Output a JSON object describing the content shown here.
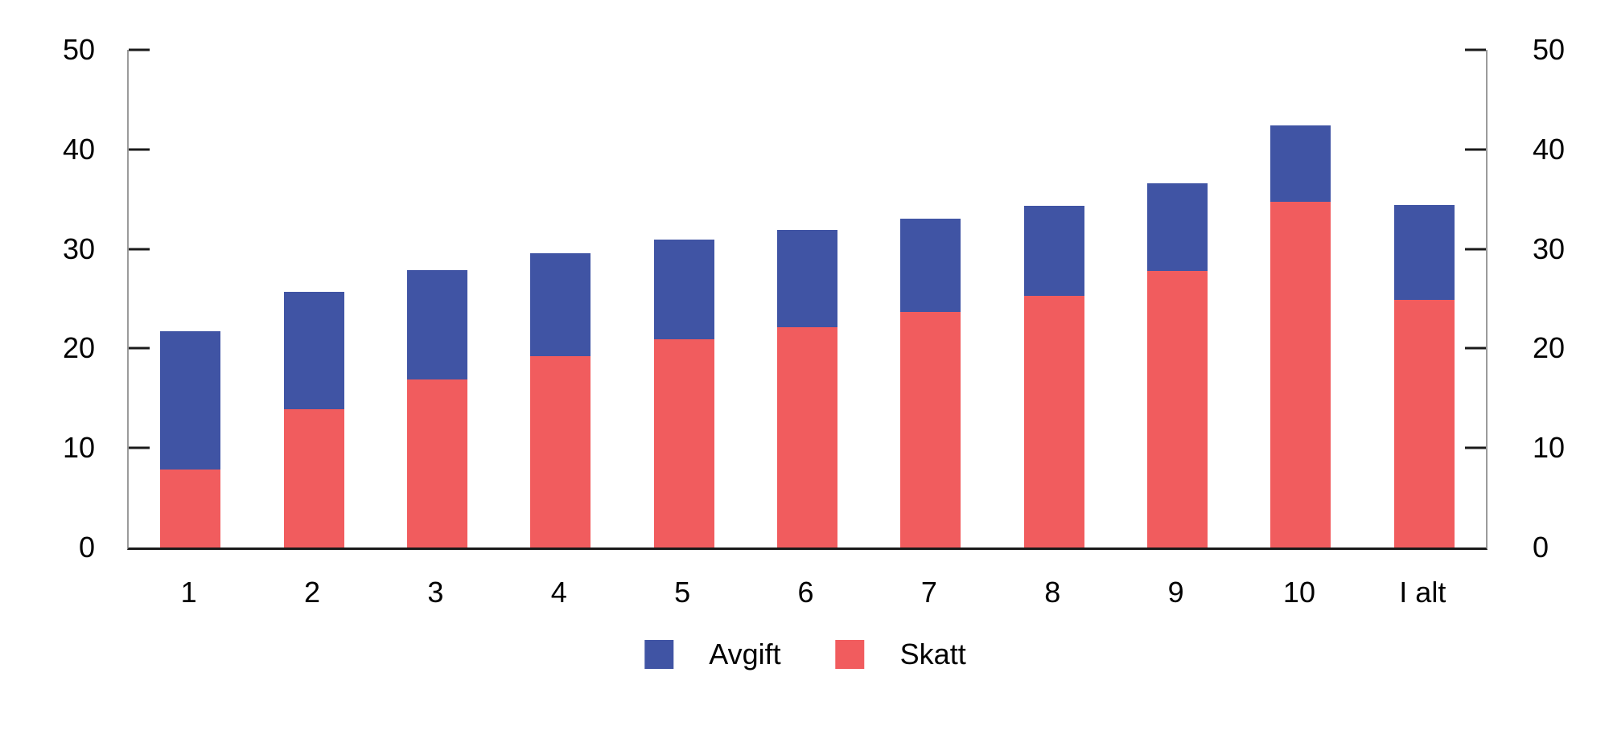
{
  "figure": {
    "background": "#ffffff"
  },
  "colors": {
    "avgift": "#4054A4",
    "skatt": "#F15C5E",
    "axis_line": "#9b9b9b",
    "tick_and_baseline": "#1a1a1a",
    "text": "#000000"
  },
  "chart_data": {
    "type": "bar",
    "stacked": true,
    "title": "",
    "xlabel": "",
    "ylabel": "",
    "grid": false,
    "categories": [
      "1",
      "2",
      "3",
      "4",
      "5",
      "6",
      "7",
      "8",
      "9",
      "10",
      "I alt"
    ],
    "series": [
      {
        "name": "Avgift",
        "color": "#4054A4",
        "stack": "top",
        "values": [
          13.9,
          11.8,
          11.0,
          10.4,
          10.0,
          9.8,
          9.3,
          9.0,
          8.8,
          7.7,
          9.5
        ]
      },
      {
        "name": "Skatt",
        "color": "#F15C5E",
        "stack": "bottom",
        "values": [
          7.8,
          13.9,
          16.9,
          19.2,
          20.9,
          22.1,
          23.7,
          25.3,
          27.8,
          34.7,
          24.9
        ]
      }
    ],
    "stack_totals": [
      21.7,
      25.7,
      27.9,
      29.6,
      30.9,
      31.9,
      33.0,
      34.3,
      36.6,
      42.4,
      34.4
    ],
    "y_axis": {
      "min": 0,
      "max": 50,
      "tick_step": 10,
      "ticks": [
        0,
        10,
        20,
        30,
        40,
        50
      ],
      "sides": [
        "left",
        "right"
      ]
    },
    "legend": {
      "position": "bottom",
      "entries": [
        "Avgift",
        "Skatt"
      ]
    }
  }
}
